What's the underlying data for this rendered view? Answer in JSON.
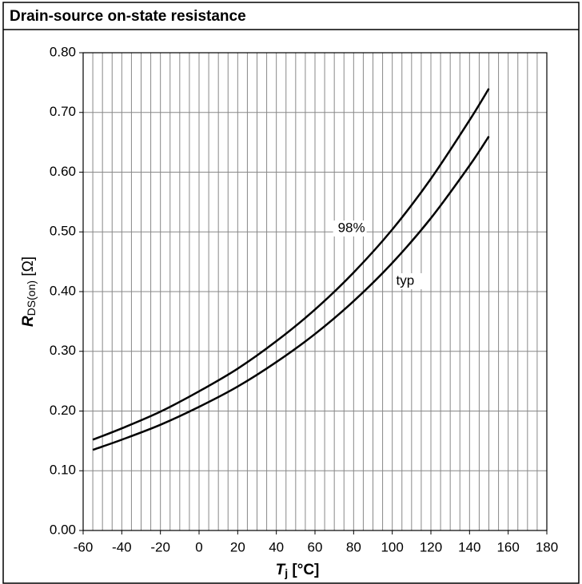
{
  "chart_data": {
    "type": "line",
    "title": "Drain-source on-state resistance",
    "ylabel": {
      "main": "R",
      "sub": "DS(on)",
      "unit": " [Ω]"
    },
    "xlabel": {
      "main": "T",
      "sub": "j",
      "unit": " [°C]"
    },
    "x": [
      -55,
      -40,
      -20,
      0,
      20,
      40,
      60,
      80,
      100,
      120,
      140,
      150
    ],
    "series": [
      {
        "name": "98%",
        "color": "#000000",
        "values": [
          0.152,
          0.171,
          0.199,
          0.233,
          0.271,
          0.317,
          0.37,
          0.432,
          0.504,
          0.589,
          0.687,
          0.74
        ]
      },
      {
        "name": "typ",
        "color": "#000000",
        "values": [
          0.135,
          0.152,
          0.177,
          0.207,
          0.241,
          0.282,
          0.329,
          0.384,
          0.448,
          0.523,
          0.611,
          0.66
        ]
      }
    ],
    "xlim": [
      -60,
      180
    ],
    "xticks": [
      -60,
      -40,
      -20,
      0,
      20,
      40,
      60,
      80,
      100,
      120,
      140,
      160,
      180
    ],
    "ylim": [
      0,
      0.8
    ],
    "yticks": [
      {
        "value": 0,
        "label": "0.00"
      },
      {
        "value": 0.1,
        "label": "0.10"
      },
      {
        "value": 0.2,
        "label": "0.20"
      },
      {
        "value": 0.3,
        "label": "0.30"
      },
      {
        "value": 0.4,
        "label": "0.40"
      },
      {
        "value": 0.5,
        "label": "0.50"
      },
      {
        "value": 0.6,
        "label": "0.60"
      },
      {
        "value": 0.7,
        "label": "0.70"
      },
      {
        "value": 0.8,
        "label": "0.80"
      }
    ],
    "grid": true
  }
}
